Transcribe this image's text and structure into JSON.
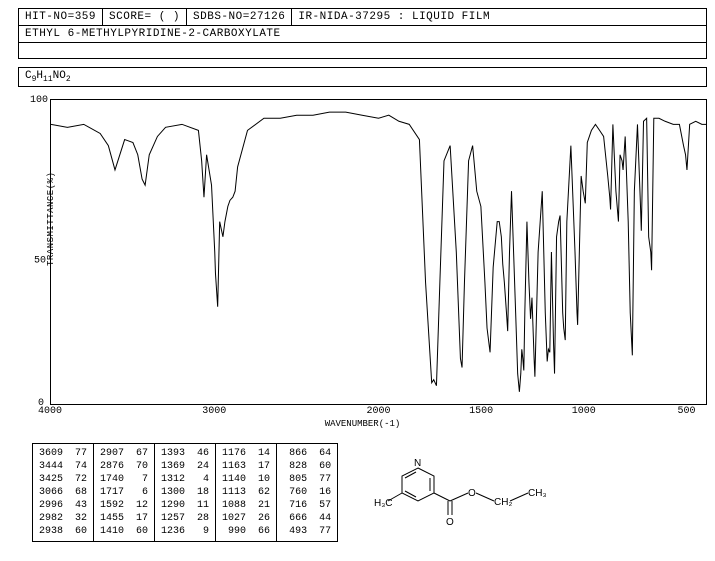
{
  "header": {
    "hit_no": "HIT-NO=359",
    "score": "SCORE=  (  )",
    "sdbs_no": "SDBS-NO=27126",
    "ir_info": "IR-NIDA-37295 : LIQUID FILM"
  },
  "compound_name": "ETHYL 6-METHYLPYRIDINE-2-CARBOXYLATE",
  "formula_parts": [
    "C",
    "9",
    "H",
    "11",
    "N",
    "O",
    "2"
  ],
  "chart": {
    "type": "line",
    "y_axis": {
      "title": "TRANSMITTANCE(%)",
      "ticks": [
        0,
        50,
        100
      ],
      "lim": [
        0,
        100
      ]
    },
    "x_axis": {
      "title": "WAVENUMBER(-1)",
      "ticks": [
        4000,
        3000,
        2000,
        1500,
        1000,
        500
      ],
      "lim": [
        4000,
        400
      ]
    },
    "line_color": "#000000",
    "background": "#ffffff",
    "series": [
      [
        4000,
        92
      ],
      [
        3900,
        91
      ],
      [
        3800,
        92
      ],
      [
        3700,
        89
      ],
      [
        3650,
        85
      ],
      [
        3609,
        77
      ],
      [
        3550,
        87
      ],
      [
        3500,
        86
      ],
      [
        3470,
        82
      ],
      [
        3444,
        74
      ],
      [
        3425,
        72
      ],
      [
        3400,
        82
      ],
      [
        3350,
        88
      ],
      [
        3300,
        91
      ],
      [
        3200,
        92
      ],
      [
        3100,
        90
      ],
      [
        3080,
        80
      ],
      [
        3066,
        68
      ],
      [
        3050,
        82
      ],
      [
        3020,
        72
      ],
      [
        3000,
        50
      ],
      [
        2996,
        43
      ],
      [
        2982,
        32
      ],
      [
        2970,
        60
      ],
      [
        2950,
        55
      ],
      [
        2938,
        60
      ],
      [
        2920,
        65
      ],
      [
        2907,
        67
      ],
      [
        2890,
        68
      ],
      [
        2876,
        70
      ],
      [
        2860,
        78
      ],
      [
        2800,
        90
      ],
      [
        2700,
        94
      ],
      [
        2600,
        94
      ],
      [
        2500,
        95
      ],
      [
        2400,
        95
      ],
      [
        2300,
        96
      ],
      [
        2200,
        96
      ],
      [
        2100,
        95
      ],
      [
        2000,
        94
      ],
      [
        1950,
        95
      ],
      [
        1900,
        93
      ],
      [
        1850,
        92
      ],
      [
        1800,
        87
      ],
      [
        1770,
        40
      ],
      [
        1740,
        7
      ],
      [
        1730,
        8
      ],
      [
        1717,
        6
      ],
      [
        1700,
        40
      ],
      [
        1680,
        80
      ],
      [
        1650,
        85
      ],
      [
        1620,
        50
      ],
      [
        1600,
        15
      ],
      [
        1592,
        12
      ],
      [
        1580,
        40
      ],
      [
        1560,
        80
      ],
      [
        1540,
        85
      ],
      [
        1520,
        70
      ],
      [
        1500,
        65
      ],
      [
        1480,
        40
      ],
      [
        1470,
        25
      ],
      [
        1455,
        17
      ],
      [
        1440,
        45
      ],
      [
        1420,
        60
      ],
      [
        1410,
        60
      ],
      [
        1400,
        55
      ],
      [
        1393,
        46
      ],
      [
        1385,
        40
      ],
      [
        1375,
        30
      ],
      [
        1369,
        24
      ],
      [
        1360,
        50
      ],
      [
        1350,
        70
      ],
      [
        1330,
        30
      ],
      [
        1320,
        10
      ],
      [
        1312,
        4
      ],
      [
        1305,
        10
      ],
      [
        1300,
        18
      ],
      [
        1295,
        15
      ],
      [
        1290,
        11
      ],
      [
        1285,
        30
      ],
      [
        1275,
        60
      ],
      [
        1265,
        40
      ],
      [
        1257,
        28
      ],
      [
        1250,
        35
      ],
      [
        1240,
        15
      ],
      [
        1236,
        9
      ],
      [
        1220,
        50
      ],
      [
        1200,
        70
      ],
      [
        1185,
        30
      ],
      [
        1176,
        14
      ],
      [
        1170,
        18
      ],
      [
        1163,
        17
      ],
      [
        1155,
        50
      ],
      [
        1145,
        20
      ],
      [
        1140,
        10
      ],
      [
        1130,
        55
      ],
      [
        1120,
        60
      ],
      [
        1113,
        62
      ],
      [
        1100,
        30
      ],
      [
        1095,
        25
      ],
      [
        1088,
        21
      ],
      [
        1080,
        60
      ],
      [
        1060,
        85
      ],
      [
        1040,
        50
      ],
      [
        1030,
        30
      ],
      [
        1027,
        26
      ],
      [
        1010,
        75
      ],
      [
        1000,
        70
      ],
      [
        990,
        66
      ],
      [
        980,
        86
      ],
      [
        960,
        90
      ],
      [
        940,
        92
      ],
      [
        920,
        90
      ],
      [
        900,
        88
      ],
      [
        880,
        75
      ],
      [
        870,
        68
      ],
      [
        866,
        64
      ],
      [
        855,
        92
      ],
      [
        840,
        70
      ],
      [
        828,
        60
      ],
      [
        820,
        82
      ],
      [
        810,
        80
      ],
      [
        805,
        77
      ],
      [
        795,
        88
      ],
      [
        780,
        60
      ],
      [
        770,
        30
      ],
      [
        760,
        16
      ],
      [
        750,
        70
      ],
      [
        735,
        92
      ],
      [
        720,
        65
      ],
      [
        716,
        57
      ],
      [
        705,
        93
      ],
      [
        690,
        94
      ],
      [
        680,
        55
      ],
      [
        670,
        50
      ],
      [
        666,
        44
      ],
      [
        655,
        94
      ],
      [
        630,
        94
      ],
      [
        600,
        93
      ],
      [
        560,
        92
      ],
      [
        530,
        92
      ],
      [
        510,
        85
      ],
      [
        500,
        82
      ],
      [
        493,
        77
      ],
      [
        480,
        92
      ],
      [
        450,
        93
      ],
      [
        420,
        92
      ],
      [
        400,
        92
      ]
    ]
  },
  "peaks": [
    [
      [
        3609,
        77
      ],
      [
        3444,
        74
      ],
      [
        3425,
        72
      ],
      [
        3066,
        68
      ],
      [
        2996,
        43
      ],
      [
        2982,
        32
      ],
      [
        2938,
        60
      ]
    ],
    [
      [
        2907,
        67
      ],
      [
        2876,
        70
      ],
      [
        1740,
        7
      ],
      [
        1717,
        6
      ],
      [
        1592,
        12
      ],
      [
        1455,
        17
      ],
      [
        1410,
        60
      ]
    ],
    [
      [
        1393,
        46
      ],
      [
        1369,
        24
      ],
      [
        1312,
        4
      ],
      [
        1300,
        18
      ],
      [
        1290,
        11
      ],
      [
        1257,
        28
      ],
      [
        1236,
        9
      ]
    ],
    [
      [
        1176,
        14
      ],
      [
        1163,
        17
      ],
      [
        1140,
        10
      ],
      [
        1113,
        62
      ],
      [
        1088,
        21
      ],
      [
        1027,
        26
      ],
      [
        990,
        66
      ]
    ],
    [
      [
        866,
        64
      ],
      [
        828,
        60
      ],
      [
        805,
        77
      ],
      [
        760,
        16
      ],
      [
        716,
        57
      ],
      [
        666,
        44
      ],
      [
        493,
        77
      ]
    ]
  ],
  "molecule": {
    "labels": {
      "ch3_left": "H₃C",
      "n": "N",
      "o_dbl": "O",
      "o_single": "O",
      "ch2": "CH₂",
      "ch3_right": "CH₃"
    }
  }
}
